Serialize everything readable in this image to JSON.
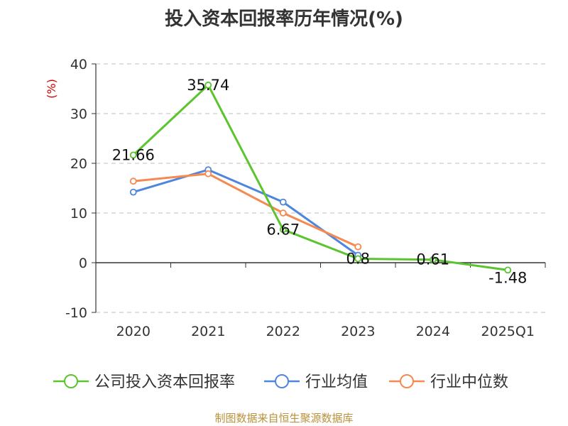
{
  "chart_data": {
    "type": "line",
    "title": "投入资本回报率历年情况(%)",
    "ylabel": "(%)",
    "categories": [
      "2020",
      "2021",
      "2022",
      "2023",
      "2024",
      "2025Q1"
    ],
    "ylim": [
      -10,
      40
    ],
    "yticks": [
      40,
      30,
      20,
      10,
      0,
      -10
    ],
    "grid": true,
    "legend_position": "bottom",
    "series": [
      {
        "name": "公司投入资本回报率",
        "color": "#5cc42e",
        "values": [
          21.66,
          35.74,
          6.67,
          0.8,
          0.61,
          -1.48
        ],
        "labels": [
          "21.66",
          "35.74",
          "6.67",
          "0.8",
          "0.61",
          "-1.48"
        ]
      },
      {
        "name": "行业均值",
        "color": "#4f86dd",
        "values": [
          14.2,
          18.7,
          12.2,
          1.5,
          null,
          null
        ]
      },
      {
        "name": "行业中位数",
        "color": "#f5894f",
        "values": [
          16.4,
          17.9,
          10.0,
          3.2,
          null,
          null
        ]
      }
    ]
  },
  "source": "制图数据来自恒生聚源数据库"
}
